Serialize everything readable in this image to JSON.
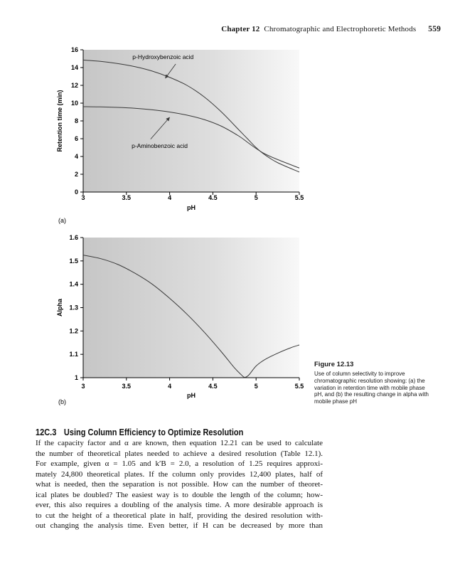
{
  "header": {
    "chapter_label": "Chapter 12",
    "chapter_title": "Chromatographic and Electrophoretic Methods",
    "page_number": "559"
  },
  "figure_caption": {
    "title": "Figure 12.13",
    "text": "Use of column selectivity to improve chromatographic resolution showing: (a) the variation in retention time with mobile phase pH, and (b) the resulting change in alpha with mobile phase pH"
  },
  "section": {
    "number": "12C.3",
    "title": "Using Column Efficiency to Optimize Resolution"
  },
  "body_lines": [
    "If the capacity factor and α are known, then equation 12.21 can be used to calculate",
    "the number of theoretical plates needed to achieve a desired resolution (Table 12.1).",
    "For example, given α = 1.05 and k′B = 2.0, a resolution of 1.25 requires approxi-",
    "mately 24,800 theoretical plates. If the column only provides 12,400 plates, half of",
    "what is needed, then the separation is not possible. How can the number of theoret-",
    "ical plates be doubled? The easiest way is to double the length of the column; how-",
    "ever, this also requires a doubling of the analysis time. A more desirable approach is",
    "to cut the height of a theoretical plate in half, providing the desired resolution with-",
    "out changing the analysis time. Even better, if H can be decreased by more than"
  ],
  "chart_data": [
    {
      "type": "line",
      "panel_label": "(a)",
      "xlabel": "pH",
      "ylabel": "Retention time (min)",
      "xlim": [
        3,
        5.5
      ],
      "ylim": [
        0,
        16
      ],
      "xtick_labels": [
        "3",
        "3.5",
        "4",
        "4.5",
        "5",
        "5.5"
      ],
      "ytick_labels": [
        "0",
        "2",
        "4",
        "6",
        "8",
        "10",
        "12",
        "14",
        "16"
      ],
      "grid": false,
      "series": [
        {
          "name": "p-Hydroxybenzoic acid",
          "x": [
            3.0,
            3.2,
            3.4,
            3.6,
            3.8,
            4.0,
            4.2,
            4.4,
            4.6,
            4.8,
            4.9,
            5.0,
            5.1,
            5.25,
            5.5
          ],
          "y": [
            14.85,
            14.7,
            14.45,
            14.1,
            13.6,
            12.9,
            12.0,
            10.7,
            9.0,
            7.0,
            6.0,
            5.0,
            4.2,
            3.3,
            2.25
          ]
        },
        {
          "name": "p-Aminobenzoic acid",
          "x": [
            3.0,
            3.2,
            3.4,
            3.6,
            3.8,
            4.0,
            4.2,
            4.4,
            4.6,
            4.8,
            4.9,
            5.0,
            5.1,
            5.25,
            5.5
          ],
          "y": [
            9.6,
            9.58,
            9.52,
            9.42,
            9.25,
            9.0,
            8.65,
            8.15,
            7.4,
            6.3,
            5.6,
            4.9,
            4.3,
            3.65,
            2.7
          ]
        }
      ],
      "annotations": [
        {
          "text": "p-Hydroxybenzoic acid",
          "text_pos": [
            3.57,
            14.95
          ],
          "arrow_from": [
            4.07,
            14.4
          ],
          "arrow_to": [
            3.95,
            12.8
          ]
        },
        {
          "text": "p-Aminobenzoic acid",
          "text_pos": [
            3.56,
            4.95
          ],
          "arrow_from": [
            3.78,
            5.95
          ],
          "arrow_to": [
            4.0,
            8.4
          ]
        }
      ]
    },
    {
      "type": "line",
      "panel_label": "(b)",
      "xlabel": "pH",
      "ylabel": "Alpha",
      "xlim": [
        3,
        5.5
      ],
      "ylim": [
        1,
        1.6
      ],
      "xtick_labels": [
        "3",
        "3.5",
        "4",
        "4.5",
        "5",
        "5.5"
      ],
      "ytick_labels": [
        "1",
        "1.1",
        "1.2",
        "1.3",
        "1.4",
        "1.5",
        "1.6"
      ],
      "grid": false,
      "series": [
        {
          "name": "alpha",
          "x": [
            3.0,
            3.2,
            3.4,
            3.6,
            3.8,
            4.0,
            4.2,
            4.4,
            4.6,
            4.75,
            4.83,
            4.87,
            4.92,
            5.0,
            5.1,
            5.25,
            5.4,
            5.5
          ],
          "y": [
            1.525,
            1.51,
            1.485,
            1.447,
            1.4,
            1.34,
            1.272,
            1.195,
            1.11,
            1.042,
            1.012,
            1.0,
            1.013,
            1.05,
            1.077,
            1.105,
            1.128,
            1.14
          ]
        }
      ],
      "annotations": []
    }
  ],
  "colors": {
    "curve": "#3a3a3a",
    "plot_gradient": [
      "#c6c6c6",
      "#dedede",
      "#f8f8f8"
    ],
    "axis": "#000000"
  }
}
